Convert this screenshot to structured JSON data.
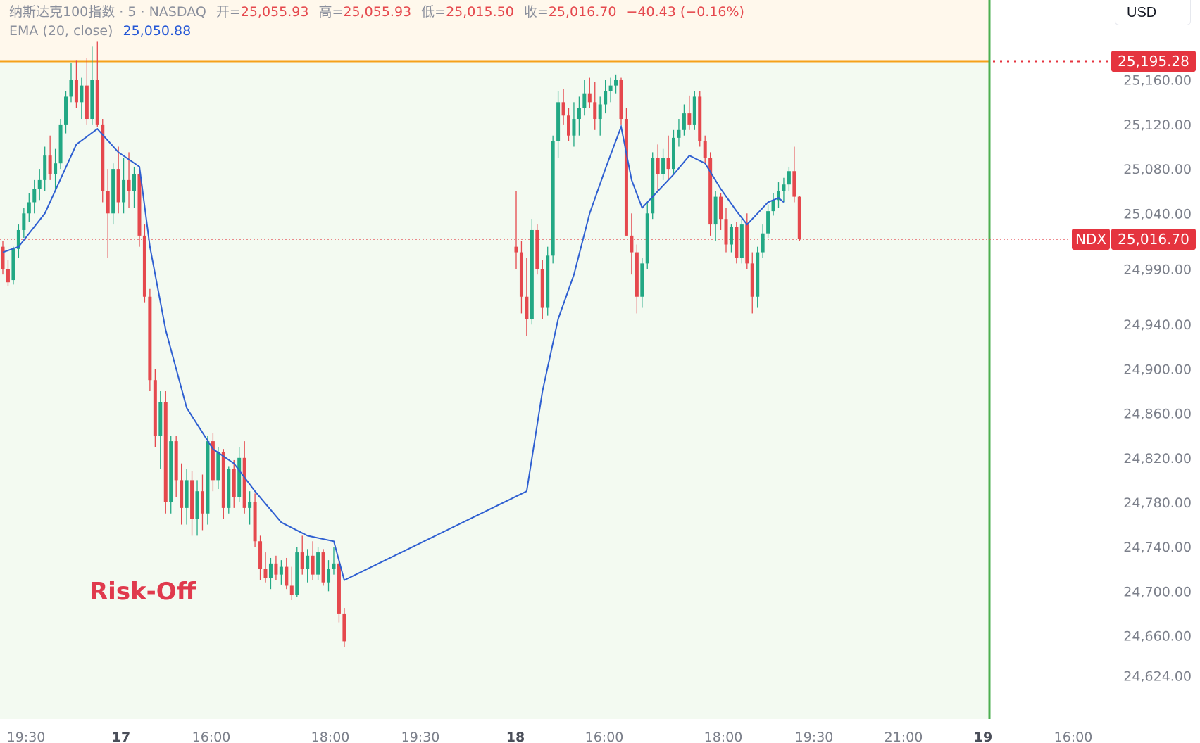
{
  "legend": {
    "symbol": "纳斯达克100指数 · 5 · NASDAQ",
    "open_label": "开=",
    "open": "25,055.93",
    "high_label": "高=",
    "high": "25,055.93",
    "low_label": "低=",
    "low": "25,015.50",
    "close_label": "收=",
    "close": "25,016.70",
    "change": "−40.43 (−0.16%)",
    "ema_label": "EMA (20, close)",
    "ema_value": "25,050.88"
  },
  "currency": "USD",
  "badges": {
    "alert_price": "25,195.28",
    "ticker": "NDX",
    "last_price": "25,016.70"
  },
  "annotation": "Risk-Off",
  "colors": {
    "up": "#22a884",
    "down": "#e5484d",
    "ema": "#2e5fd1",
    "alert_line": "#f5a11a",
    "session_line": "#4caf50",
    "top_zone": "#fff8ec",
    "main_zone": "#f3faf1"
  },
  "chart_data": {
    "type": "candlestick",
    "ylim": [
      24585,
      25232
    ],
    "y_ticks": [
      25160,
      25120,
      25080,
      25040,
      24990,
      24940,
      24900,
      24860,
      24820,
      24780,
      24740,
      24700,
      24660,
      24624
    ],
    "y_tick_labels": [
      "25,160.00",
      "25,120.00",
      "25,080.00",
      "25,040.00",
      "24,990.00",
      "24,940.00",
      "24,900.00",
      "24,860.00",
      "24,820.00",
      "24,780.00",
      "24,740.00",
      "24,700.00",
      "24,660.00",
      "24,624.00"
    ],
    "x_tick_labels": [
      "19:30",
      "17",
      "16:00",
      "18:00",
      "19:30",
      "18",
      "16:00",
      "18:00",
      "19:30",
      "21:00",
      "19",
      "16:00"
    ],
    "x_tick_bold": [
      false,
      true,
      false,
      false,
      false,
      true,
      false,
      false,
      false,
      false,
      true,
      false
    ],
    "alert_level": 25195.28,
    "last_price": 25016.7,
    "ohlc": [
      [
        25010,
        25015,
        24985,
        24990
      ],
      [
        24990,
        24998,
        24975,
        24978
      ],
      [
        24980,
        25010,
        24976,
        25008
      ],
      [
        25008,
        25030,
        25000,
        25025
      ],
      [
        25025,
        25045,
        25018,
        25040
      ],
      [
        25040,
        25058,
        25032,
        25050
      ],
      [
        25050,
        25070,
        25040,
        25062
      ],
      [
        25062,
        25080,
        25052,
        25070
      ],
      [
        25070,
        25100,
        25060,
        25092
      ],
      [
        25092,
        25110,
        25070,
        25075
      ],
      [
        25075,
        25098,
        25060,
        25085
      ],
      [
        25085,
        25125,
        25080,
        25120
      ],
      [
        25120,
        25150,
        25112,
        25145
      ],
      [
        25145,
        25175,
        25140,
        25160
      ],
      [
        25160,
        25178,
        25135,
        25140
      ],
      [
        25140,
        25162,
        25125,
        25155
      ],
      [
        25155,
        25180,
        25120,
        25125
      ],
      [
        25125,
        25190,
        25120,
        25160
      ],
      [
        25160,
        25195,
        25118,
        25120
      ],
      [
        25120,
        25125,
        25050,
        25060
      ],
      [
        25060,
        25080,
        25000,
        25040
      ],
      [
        25040,
        25085,
        25030,
        25080
      ],
      [
        25080,
        25100,
        25040,
        25050
      ],
      [
        25050,
        25090,
        25040,
        25070
      ],
      [
        25070,
        25095,
        25045,
        25060
      ],
      [
        25060,
        25082,
        25045,
        25075
      ],
      [
        25075,
        25078,
        25010,
        25020
      ],
      [
        25020,
        25030,
        24960,
        24965
      ],
      [
        24965,
        24972,
        24880,
        24890
      ],
      [
        24890,
        24900,
        24830,
        24840
      ],
      [
        24840,
        24880,
        24810,
        24870
      ],
      [
        24870,
        24880,
        24770,
        24780
      ],
      [
        24780,
        24840,
        24770,
        24835
      ],
      [
        24835,
        24840,
        24785,
        24800
      ],
      [
        24800,
        24815,
        24760,
        24775
      ],
      [
        24775,
        24810,
        24760,
        24800
      ],
      [
        24800,
        24808,
        24750,
        24765
      ],
      [
        24765,
        24800,
        24750,
        24790
      ],
      [
        24790,
        24805,
        24755,
        24770
      ],
      [
        24770,
        24840,
        24760,
        24835
      ],
      [
        24835,
        24842,
        24790,
        24800
      ],
      [
        24800,
        24830,
        24792,
        24825
      ],
      [
        24825,
        24828,
        24765,
        24775
      ],
      [
        24775,
        24812,
        24770,
        24810
      ],
      [
        24810,
        24818,
        24775,
        24785
      ],
      [
        24785,
        24830,
        24780,
        24820
      ],
      [
        24820,
        24835,
        24770,
        24775
      ],
      [
        24775,
        24790,
        24760,
        24780
      ],
      [
        24780,
        24788,
        24740,
        24745
      ],
      [
        24745,
        24750,
        24710,
        24720
      ],
      [
        24720,
        24735,
        24708,
        24712
      ],
      [
        24712,
        24730,
        24702,
        24725
      ],
      [
        24725,
        24732,
        24710,
        24715
      ],
      [
        24715,
        24728,
        24706,
        24722
      ],
      [
        24722,
        24730,
        24702,
        24705
      ],
      [
        24705,
        24722,
        24692,
        24697
      ],
      [
        24697,
        24740,
        24695,
        24735
      ],
      [
        24735,
        24750,
        24715,
        24720
      ],
      [
        24720,
        24738,
        24708,
        24732
      ],
      [
        24732,
        24745,
        24710,
        24715
      ],
      [
        24715,
        24740,
        24710,
        24735
      ],
      [
        24735,
        24738,
        24705,
        24708
      ],
      [
        24708,
        24728,
        24700,
        24720
      ],
      [
        24720,
        24740,
        24715,
        24725
      ],
      [
        24725,
        24730,
        24672,
        24680
      ],
      [
        24680,
        24685,
        24650,
        24655
      ],
      [
        25010,
        25060,
        24990,
        25005
      ],
      [
        25005,
        25015,
        24950,
        24965
      ],
      [
        24965,
        25000,
        24930,
        24945
      ],
      [
        24945,
        25035,
        24940,
        25025
      ],
      [
        25025,
        25030,
        24985,
        24990
      ],
      [
        24990,
        24998,
        24945,
        24955
      ],
      [
        24955,
        25010,
        24948,
        25002
      ],
      [
        25002,
        25110,
        24995,
        25105
      ],
      [
        25105,
        25150,
        25090,
        25140
      ],
      [
        25140,
        25152,
        25120,
        25128
      ],
      [
        25128,
        25135,
        25105,
        25110
      ],
      [
        25110,
        25140,
        25100,
        25125
      ],
      [
        25125,
        25145,
        25110,
        25135
      ],
      [
        25135,
        25160,
        25128,
        25148
      ],
      [
        25148,
        25162,
        25135,
        25140
      ],
      [
        25140,
        25158,
        25115,
        25125
      ],
      [
        25125,
        25145,
        25110,
        25138
      ],
      [
        25138,
        25160,
        25130,
        25150
      ],
      [
        25150,
        25162,
        25140,
        25155
      ],
      [
        25155,
        25165,
        25148,
        25160
      ],
      [
        25160,
        25162,
        25120,
        25125
      ],
      [
        25125,
        25135,
        25020,
        25020
      ],
      [
        25020,
        25040,
        24985,
        25005
      ],
      [
        25005,
        25012,
        24950,
        24965
      ],
      [
        24965,
        25000,
        24955,
        24995
      ],
      [
        24995,
        25050,
        24990,
        25040
      ],
      [
        25040,
        25095,
        25035,
        25090
      ],
      [
        25090,
        25102,
        25060,
        25075
      ],
      [
        25075,
        25098,
        25070,
        25090
      ],
      [
        25090,
        25110,
        25070,
        25080
      ],
      [
        25080,
        25115,
        25075,
        25108
      ],
      [
        25108,
        25125,
        25100,
        25115
      ],
      [
        25115,
        25138,
        25110,
        25130
      ],
      [
        25130,
        25146,
        25115,
        25120
      ],
      [
        25120,
        25150,
        25115,
        25145
      ],
      [
        25145,
        25150,
        25100,
        25105
      ],
      [
        25105,
        25110,
        25085,
        25090
      ],
      [
        25090,
        25095,
        25020,
        25030
      ],
      [
        25030,
        25060,
        25015,
        25055
      ],
      [
        25055,
        25058,
        25025,
        25035
      ],
      [
        25035,
        25045,
        25005,
        25012
      ],
      [
        25012,
        25030,
        25005,
        25028
      ],
      [
        25028,
        25032,
        24995,
        25000
      ],
      [
        25000,
        25035,
        24995,
        25030
      ],
      [
        25030,
        25040,
        24990,
        24995
      ],
      [
        24995,
        25005,
        24950,
        24965
      ],
      [
        24965,
        25010,
        24955,
        25005
      ],
      [
        25005,
        25030,
        25000,
        25022
      ],
      [
        25022,
        25048,
        25018,
        25042
      ],
      [
        25042,
        25058,
        25038,
        25052
      ],
      [
        25052,
        25068,
        25045,
        25060
      ],
      [
        25060,
        25072,
        25050,
        25066
      ],
      [
        25066,
        25082,
        25060,
        25078
      ],
      [
        25078,
        25100,
        25050,
        25055
      ],
      [
        25055,
        25056,
        25015,
        25017
      ]
    ],
    "ema": [
      [
        0,
        25005
      ],
      [
        3,
        25010
      ],
      [
        8,
        25040
      ],
      [
        14,
        25102
      ],
      [
        18,
        25116
      ],
      [
        22,
        25095
      ],
      [
        26,
        25082
      ],
      [
        28,
        25010
      ],
      [
        31,
        24935
      ],
      [
        35,
        24865
      ],
      [
        40,
        24828
      ],
      [
        44,
        24815
      ],
      [
        48,
        24790
      ],
      [
        53,
        24762
      ],
      [
        58,
        24750
      ],
      [
        63,
        24745
      ],
      [
        65,
        24710
      ],
      [
        68,
        24790
      ],
      [
        71,
        24880
      ],
      [
        74,
        24945
      ],
      [
        77,
        24985
      ],
      [
        80,
        25040
      ],
      [
        83,
        25080
      ],
      [
        86,
        25118
      ],
      [
        88,
        25070
      ],
      [
        90,
        25045
      ],
      [
        93,
        25060
      ],
      [
        96,
        25075
      ],
      [
        99,
        25092
      ],
      [
        102,
        25085
      ],
      [
        105,
        25062
      ],
      [
        108,
        25042
      ],
      [
        110,
        25030
      ],
      [
        112,
        25040
      ],
      [
        114,
        25050
      ],
      [
        116,
        25054
      ],
      [
        117,
        25050
      ]
    ]
  }
}
